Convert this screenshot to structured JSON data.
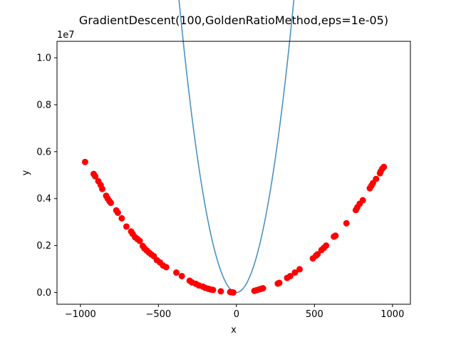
{
  "chart_data": {
    "type": "scatter",
    "title": "GradientDescent(100,GoldenRatioMethod,eps=1e-05)",
    "xlabel": "x",
    "ylabel": "y",
    "offset_label": "1e7",
    "xlim": [
      -1150,
      1115
    ],
    "ylim": [
      -0.05,
      1.07
    ],
    "x_ticks": [
      -1000,
      -500,
      0,
      500,
      1000
    ],
    "x_tick_labels": [
      "−1000",
      "−500",
      "0",
      "500",
      "1000"
    ],
    "y_ticks": [
      0.0,
      0.2,
      0.4,
      0.6,
      0.8,
      1.0
    ],
    "y_tick_labels": [
      "0.0",
      "0.2",
      "0.4",
      "0.6",
      "0.8",
      "1.0"
    ],
    "grid": false,
    "curve": {
      "color": "#4c92c3",
      "x_range": [
        -1050,
        1015
      ],
      "coef": 9.2e-06
    },
    "points": {
      "color": "#ff0000",
      "x": [
        -970,
        -915,
        -905,
        -885,
        -870,
        -860,
        -835,
        -825,
        -815,
        -805,
        -770,
        -760,
        -735,
        -705,
        -675,
        -665,
        -650,
        -635,
        -620,
        -600,
        -590,
        -575,
        -560,
        -545,
        -530,
        -510,
        -490,
        -470,
        -450,
        -385,
        -350,
        -300,
        -285,
        -260,
        -240,
        -215,
        -200,
        -180,
        -165,
        -150,
        -100,
        -40,
        -30,
        -20,
        115,
        130,
        145,
        160,
        170,
        265,
        275,
        325,
        345,
        375,
        405,
        490,
        510,
        520,
        545,
        560,
        575,
        625,
        635,
        705,
        765,
        775,
        790,
        810,
        855,
        865,
        875,
        895,
        920,
        925,
        935,
        945
      ],
      "y": [
        0.556,
        0.505,
        0.495,
        0.474,
        0.458,
        0.441,
        0.412,
        0.4,
        0.39,
        0.382,
        0.35,
        0.34,
        0.316,
        0.281,
        0.26,
        0.25,
        0.236,
        0.228,
        0.22,
        0.198,
        0.188,
        0.179,
        0.17,
        0.162,
        0.155,
        0.138,
        0.128,
        0.115,
        0.108,
        0.085,
        0.07,
        0.05,
        0.043,
        0.037,
        0.03,
        0.025,
        0.02,
        0.016,
        0.013,
        0.011,
        0.005,
        0.002,
        0.001,
        0.0,
        0.007,
        0.01,
        0.013,
        0.016,
        0.018,
        0.038,
        0.041,
        0.062,
        0.07,
        0.085,
        0.099,
        0.145,
        0.157,
        0.163,
        0.181,
        0.19,
        0.2,
        0.238,
        0.242,
        0.295,
        0.351,
        0.363,
        0.378,
        0.393,
        0.444,
        0.455,
        0.466,
        0.484,
        0.508,
        0.516,
        0.528,
        0.535
      ]
    }
  }
}
